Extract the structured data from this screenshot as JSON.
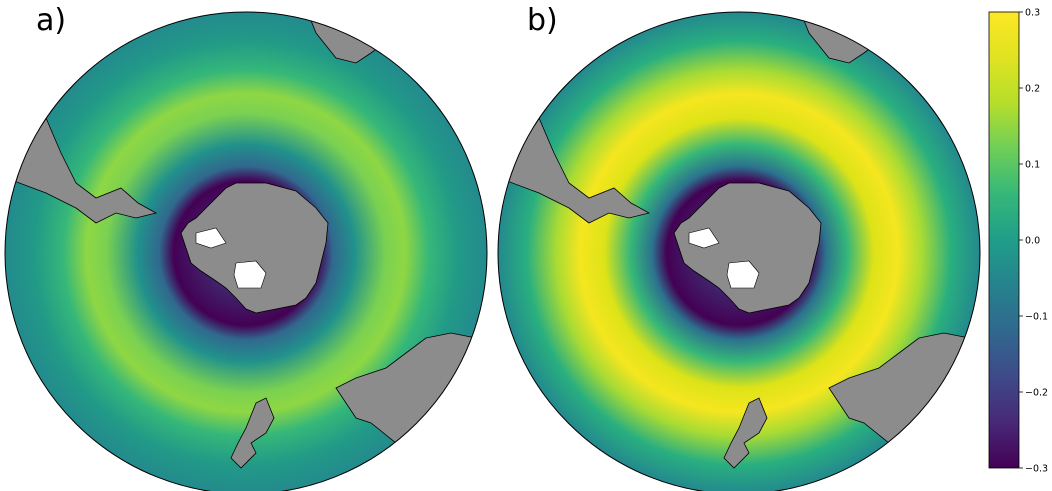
{
  "figure": {
    "panels": [
      {
        "label": "a)",
        "field": {
          "peak": 0.18,
          "inner_min": -0.24
        }
      },
      {
        "label": "b)",
        "field": {
          "peak": 0.3,
          "inner_min": -0.27
        }
      }
    ],
    "colorbar": {
      "min": -0.3,
      "max": 0.3,
      "colormap": "viridis",
      "ticks": [
        {
          "value": 0.3,
          "label": "0.3"
        },
        {
          "value": 0.2,
          "label": "0.2"
        },
        {
          "value": 0.1,
          "label": "0.1"
        },
        {
          "value": 0.0,
          "label": "0.0"
        },
        {
          "value": -0.1,
          "label": "−0.1"
        },
        {
          "value": -0.2,
          "label": "−0.2"
        },
        {
          "value": -0.3,
          "label": "−0.3"
        }
      ]
    },
    "colors": {
      "ocean_background": "#2a9b8a",
      "land": "#8c8c8c",
      "ice_shelf": "#ffffff",
      "coast": "#000000"
    }
  }
}
